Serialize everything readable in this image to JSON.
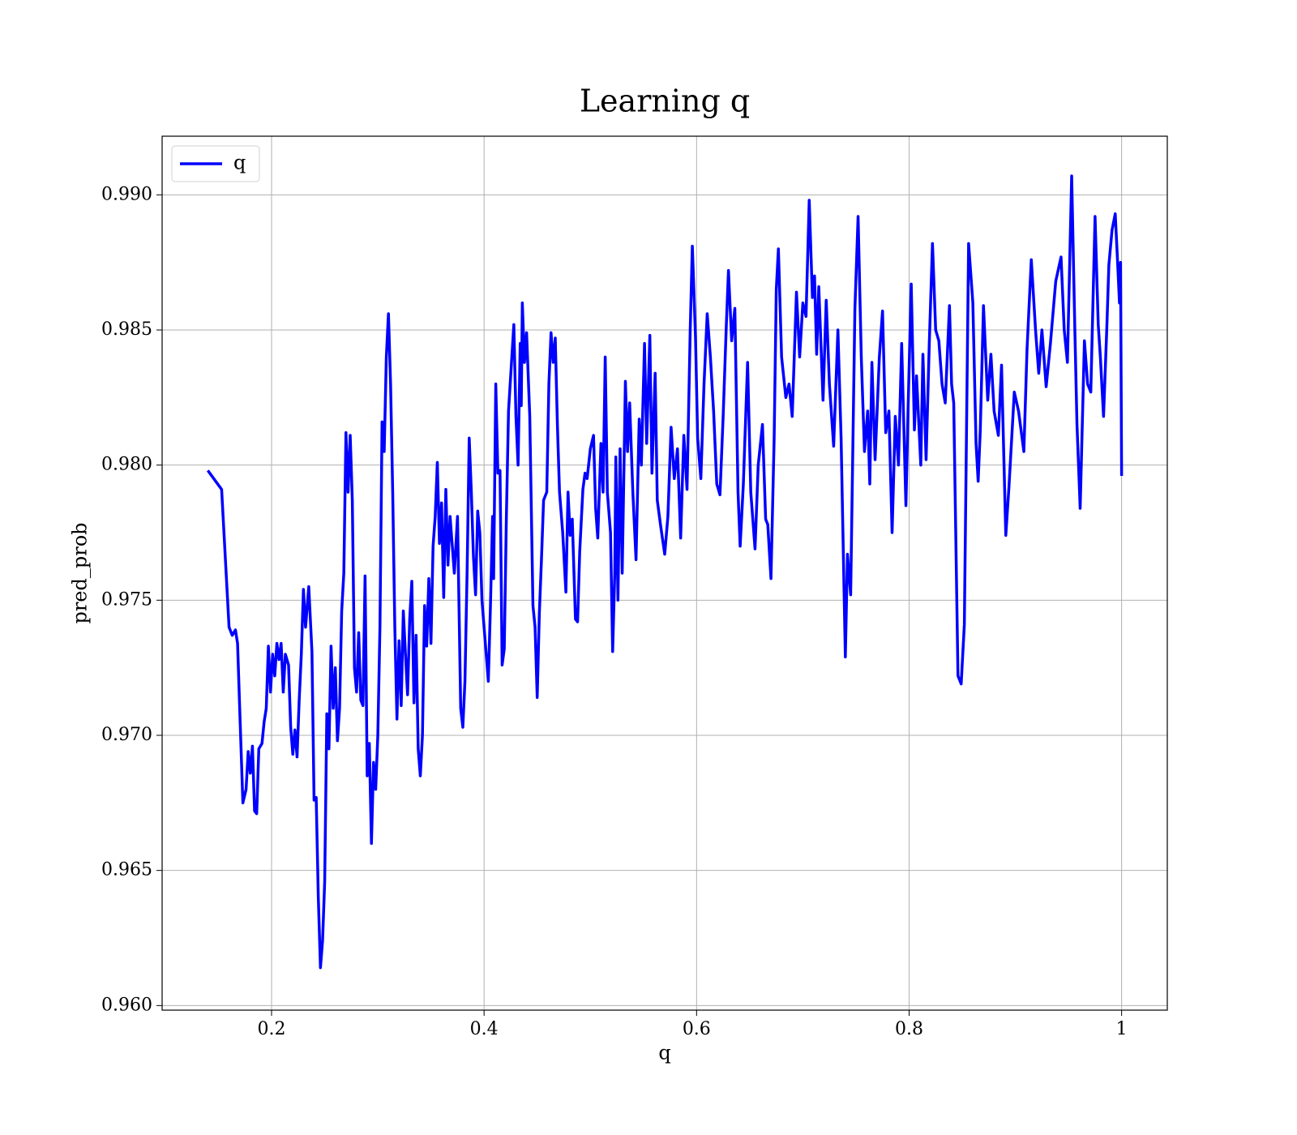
{
  "chart_data": {
    "type": "line",
    "title": "Learning q",
    "x_label": "q",
    "y_label": "pred_prob",
    "x": [
      0.14,
      0.153,
      0.16,
      0.163,
      0.166,
      0.168,
      0.17,
      0.173,
      0.176,
      0.178,
      0.18,
      0.182,
      0.184,
      0.186,
      0.188,
      0.191,
      0.193,
      0.195,
      0.197,
      0.199,
      0.201,
      0.203,
      0.205,
      0.207,
      0.209,
      0.211,
      0.213,
      0.216,
      0.218,
      0.22,
      0.222,
      0.224,
      0.226,
      0.228,
      0.23,
      0.232,
      0.235,
      0.238,
      0.24,
      0.242,
      0.244,
      0.246,
      0.248,
      0.25,
      0.252,
      0.254,
      0.256,
      0.258,
      0.26,
      0.262,
      0.264,
      0.266,
      0.268,
      0.27,
      0.272,
      0.274,
      0.276,
      0.278,
      0.28,
      0.282,
      0.284,
      0.286,
      0.288,
      0.29,
      0.292,
      0.294,
      0.296,
      0.298,
      0.3,
      0.302,
      0.304,
      0.306,
      0.308,
      0.31,
      0.312,
      0.314,
      0.316,
      0.318,
      0.32,
      0.322,
      0.324,
      0.326,
      0.328,
      0.33,
      0.332,
      0.334,
      0.336,
      0.338,
      0.34,
      0.342,
      0.344,
      0.346,
      0.348,
      0.35,
      0.352,
      0.354,
      0.356,
      0.358,
      0.36,
      0.362,
      0.364,
      0.366,
      0.368,
      0.372,
      0.375,
      0.378,
      0.38,
      0.382,
      0.384,
      0.386,
      0.388,
      0.39,
      0.392,
      0.394,
      0.396,
      0.398,
      0.401,
      0.404,
      0.406,
      0.408,
      0.409,
      0.411,
      0.413,
      0.415,
      0.417,
      0.419,
      0.421,
      0.423,
      0.428,
      0.43,
      0.432,
      0.434,
      0.435,
      0.436,
      0.438,
      0.44,
      0.443,
      0.446,
      0.448,
      0.45,
      0.452,
      0.454,
      0.456,
      0.459,
      0.461,
      0.463,
      0.465,
      0.467,
      0.469,
      0.471,
      0.474,
      0.477,
      0.479,
      0.481,
      0.483,
      0.486,
      0.488,
      0.49,
      0.493,
      0.495,
      0.497,
      0.5,
      0.503,
      0.505,
      0.507,
      0.51,
      0.512,
      0.514,
      0.516,
      0.519,
      0.521,
      0.523,
      0.524,
      0.526,
      0.528,
      0.53,
      0.533,
      0.535,
      0.537,
      0.54,
      0.543,
      0.546,
      0.548,
      0.551,
      0.553,
      0.556,
      0.558,
      0.561,
      0.563,
      0.566,
      0.57,
      0.573,
      0.576,
      0.579,
      0.582,
      0.585,
      0.588,
      0.591,
      0.594,
      0.596,
      0.599,
      0.601,
      0.604,
      0.607,
      0.61,
      0.613,
      0.616,
      0.619,
      0.622,
      0.625,
      0.628,
      0.63,
      0.633,
      0.636,
      0.639,
      0.641,
      0.644,
      0.648,
      0.651,
      0.655,
      0.658,
      0.662,
      0.665,
      0.667,
      0.67,
      0.673,
      0.675,
      0.677,
      0.68,
      0.684,
      0.687,
      0.69,
      0.694,
      0.697,
      0.7,
      0.703,
      0.706,
      0.709,
      0.711,
      0.713,
      0.715,
      0.719,
      0.722,
      0.725,
      0.729,
      0.733,
      0.736,
      0.74,
      0.742,
      0.745,
      0.749,
      0.752,
      0.755,
      0.758,
      0.761,
      0.763,
      0.765,
      0.768,
      0.772,
      0.775,
      0.778,
      0.781,
      0.784,
      0.787,
      0.79,
      0.793,
      0.797,
      0.799,
      0.802,
      0.805,
      0.807,
      0.811,
      0.813,
      0.816,
      0.819,
      0.822,
      0.825,
      0.828,
      0.831,
      0.834,
      0.838,
      0.84,
      0.842,
      0.846,
      0.849,
      0.852,
      0.856,
      0.86,
      0.863,
      0.865,
      0.867,
      0.87,
      0.874,
      0.877,
      0.88,
      0.884,
      0.887,
      0.891,
      0.894,
      0.899,
      0.903,
      0.908,
      0.911,
      0.915,
      0.919,
      0.922,
      0.925,
      0.929,
      0.933,
      0.938,
      0.943,
      0.946,
      0.949,
      0.953,
      0.956,
      0.958,
      0.961,
      0.965,
      0.968,
      0.971,
      0.975,
      0.978,
      0.98,
      0.983,
      0.986,
      0.988,
      0.991,
      0.994,
      0.996,
      0.998,
      0.999,
      1.0
    ],
    "series": [
      {
        "name": "q",
        "color": "#0000ff",
        "values": [
          0.9798,
          0.9791,
          0.974,
          0.9737,
          0.9739,
          0.9734,
          0.971,
          0.9675,
          0.968,
          0.9694,
          0.9686,
          0.9696,
          0.9672,
          0.9671,
          0.9695,
          0.9697,
          0.9705,
          0.971,
          0.9733,
          0.9716,
          0.973,
          0.9722,
          0.9734,
          0.9728,
          0.9734,
          0.9716,
          0.973,
          0.9726,
          0.9703,
          0.9693,
          0.9702,
          0.9692,
          0.9713,
          0.973,
          0.9754,
          0.974,
          0.9755,
          0.9731,
          0.9676,
          0.9677,
          0.964,
          0.9614,
          0.9624,
          0.9646,
          0.9708,
          0.9695,
          0.9733,
          0.971,
          0.9725,
          0.9698,
          0.971,
          0.9746,
          0.976,
          0.9812,
          0.979,
          0.9811,
          0.9787,
          0.9725,
          0.9716,
          0.9738,
          0.9713,
          0.9711,
          0.9759,
          0.9685,
          0.9697,
          0.966,
          0.969,
          0.968,
          0.97,
          0.974,
          0.9816,
          0.9805,
          0.984,
          0.9856,
          0.983,
          0.979,
          0.974,
          0.9706,
          0.9735,
          0.9711,
          0.9746,
          0.973,
          0.9715,
          0.9743,
          0.9757,
          0.9712,
          0.9737,
          0.9695,
          0.9685,
          0.97,
          0.9748,
          0.9733,
          0.9758,
          0.9734,
          0.977,
          0.9781,
          0.9801,
          0.9771,
          0.9786,
          0.9751,
          0.9791,
          0.9763,
          0.9781,
          0.976,
          0.9781,
          0.971,
          0.9703,
          0.972,
          0.976,
          0.981,
          0.979,
          0.9766,
          0.9752,
          0.9783,
          0.9775,
          0.975,
          0.9735,
          0.972,
          0.9748,
          0.9781,
          0.9758,
          0.983,
          0.9797,
          0.9798,
          0.9726,
          0.9732,
          0.9781,
          0.982,
          0.9852,
          0.9818,
          0.98,
          0.9845,
          0.9822,
          0.986,
          0.9838,
          0.9849,
          0.9818,
          0.9748,
          0.974,
          0.9714,
          0.9745,
          0.9765,
          0.9787,
          0.979,
          0.983,
          0.9849,
          0.9838,
          0.9847,
          0.9815,
          0.979,
          0.9775,
          0.9753,
          0.979,
          0.9774,
          0.978,
          0.9743,
          0.9742,
          0.9768,
          0.9791,
          0.9797,
          0.9795,
          0.9806,
          0.9811,
          0.9784,
          0.9773,
          0.9808,
          0.979,
          0.984,
          0.979,
          0.9775,
          0.9731,
          0.976,
          0.9803,
          0.975,
          0.9806,
          0.976,
          0.9831,
          0.9805,
          0.9823,
          0.979,
          0.9765,
          0.9817,
          0.98,
          0.9845,
          0.9808,
          0.9848,
          0.9797,
          0.9834,
          0.9787,
          0.9778,
          0.9767,
          0.9781,
          0.9814,
          0.9795,
          0.9806,
          0.9773,
          0.9811,
          0.9791,
          0.985,
          0.9881,
          0.9847,
          0.981,
          0.9795,
          0.983,
          0.9856,
          0.984,
          0.982,
          0.9793,
          0.9789,
          0.9818,
          0.9852,
          0.9872,
          0.9846,
          0.9858,
          0.979,
          0.977,
          0.9793,
          0.9838,
          0.979,
          0.9769,
          0.98,
          0.9815,
          0.978,
          0.9778,
          0.9758,
          0.981,
          0.9865,
          0.988,
          0.984,
          0.9825,
          0.983,
          0.9818,
          0.9864,
          0.984,
          0.986,
          0.9855,
          0.9898,
          0.9862,
          0.987,
          0.9841,
          0.9866,
          0.9824,
          0.9861,
          0.983,
          0.9807,
          0.985,
          0.981,
          0.9729,
          0.9767,
          0.9752,
          0.9858,
          0.9892,
          0.984,
          0.9805,
          0.982,
          0.9793,
          0.9838,
          0.9802,
          0.984,
          0.9857,
          0.9812,
          0.982,
          0.9775,
          0.9818,
          0.98,
          0.9845,
          0.9785,
          0.982,
          0.9867,
          0.9813,
          0.9833,
          0.98,
          0.9841,
          0.9802,
          0.9845,
          0.9882,
          0.985,
          0.9846,
          0.983,
          0.9823,
          0.9859,
          0.983,
          0.9823,
          0.9722,
          0.9719,
          0.9741,
          0.9882,
          0.986,
          0.9808,
          0.9794,
          0.9813,
          0.9859,
          0.9824,
          0.9841,
          0.982,
          0.9811,
          0.9837,
          0.9774,
          0.9792,
          0.9827,
          0.982,
          0.9805,
          0.9843,
          0.9876,
          0.985,
          0.9834,
          0.985,
          0.9829,
          0.9845,
          0.9868,
          0.9877,
          0.985,
          0.9838,
          0.9907,
          0.985,
          0.9815,
          0.9784,
          0.9846,
          0.983,
          0.9827,
          0.9892,
          0.9852,
          0.984,
          0.9818,
          0.985,
          0.9874,
          0.9887,
          0.9893,
          0.9877,
          0.986,
          0.9875,
          0.9796
        ]
      }
    ],
    "xlim": [
      0.097,
      1.043
    ],
    "ylim": [
      0.95983,
      0.99217
    ],
    "xticks": [
      0.2,
      0.4,
      0.6,
      0.8,
      1.0
    ],
    "yticks": [
      {
        "value": 0.96,
        "label": "0.960"
      },
      0.965,
      {
        "value": 0.97,
        "label": "0.970"
      },
      0.975,
      {
        "value": 0.98,
        "label": "0.980"
      },
      0.985,
      {
        "value": 0.99,
        "label": "0.990"
      }
    ],
    "grid": true,
    "legend": "upper left"
  }
}
